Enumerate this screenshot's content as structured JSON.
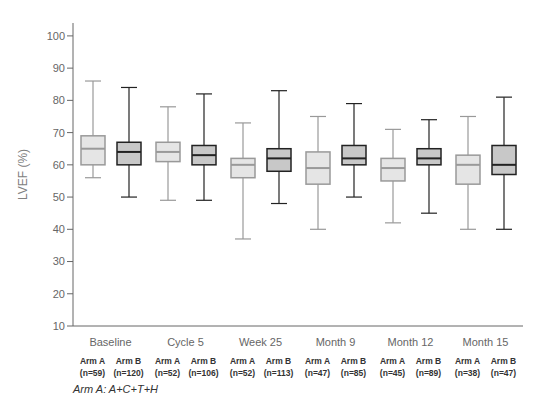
{
  "chart_data": {
    "type": "box",
    "categories": [
      "Baseline",
      "Cycle 5",
      "Week 25",
      "Month 9",
      "Month 12",
      "Month 15"
    ],
    "y_label": "LVEF (%)",
    "ylim": [
      10,
      104
    ],
    "yticks": [
      10,
      20,
      30,
      40,
      50,
      60,
      70,
      80,
      90,
      100
    ],
    "grid": false,
    "annotations": [
      "Arm A: A+C+T+H"
    ],
    "series": [
      {
        "name": "Arm A",
        "color": "#999999",
        "sample_labels": [
          "(n=59)",
          "(n=52)",
          "(n=52)",
          "(n=47)",
          "(n=45)",
          "(n=38)"
        ],
        "values": [
          {
            "whislo": 56,
            "q1": 60,
            "med": 65,
            "q3": 69,
            "whishi": 86
          },
          {
            "whislo": 49,
            "q1": 61,
            "med": 64,
            "q3": 67,
            "whishi": 78
          },
          {
            "whislo": 37,
            "q1": 56,
            "med": 60,
            "q3": 62,
            "whishi": 73
          },
          {
            "whislo": 40,
            "q1": 54,
            "med": 59,
            "q3": 64,
            "whishi": 75
          },
          {
            "whislo": 42,
            "q1": 55,
            "med": 59,
            "q3": 62,
            "whishi": 71
          },
          {
            "whislo": 40,
            "q1": 54,
            "med": 60,
            "q3": 63,
            "whishi": 75
          }
        ]
      },
      {
        "name": "Arm B",
        "color": "#222222",
        "sample_labels": [
          "(n=120)",
          "(n=106)",
          "(n=113)",
          "(n=85)",
          "(n=89)",
          "(n=47)"
        ],
        "values": [
          {
            "whislo": 50,
            "q1": 60,
            "med": 64,
            "q3": 67,
            "whishi": 84
          },
          {
            "whislo": 49,
            "q1": 60,
            "med": 63,
            "q3": 66,
            "whishi": 82
          },
          {
            "whislo": 48,
            "q1": 58,
            "med": 62,
            "q3": 65,
            "whishi": 83
          },
          {
            "whislo": 50,
            "q1": 60,
            "med": 62,
            "q3": 66,
            "whishi": 79
          },
          {
            "whislo": 45,
            "q1": 60,
            "med": 62,
            "q3": 65,
            "whishi": 74
          },
          {
            "whislo": 40,
            "q1": 57,
            "med": 60,
            "q3": 66,
            "whishi": 81
          }
        ]
      }
    ]
  }
}
